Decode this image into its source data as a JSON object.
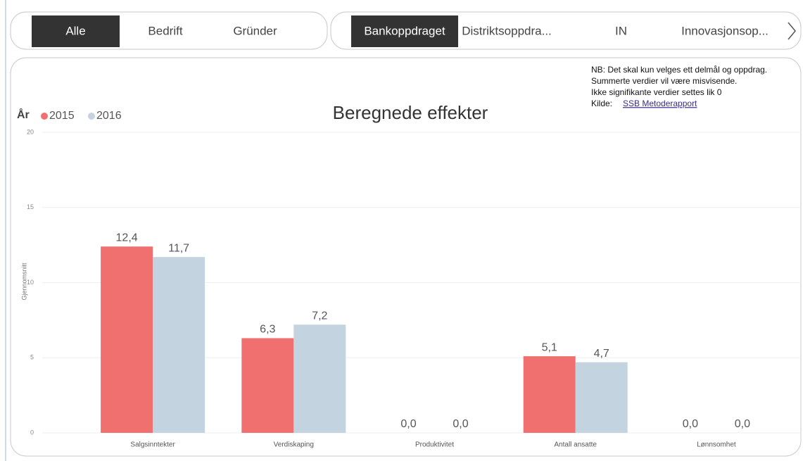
{
  "slicer_left": {
    "items": [
      "Alle",
      "Bedrift",
      "Gründer"
    ],
    "selected": 0
  },
  "slicer_right": {
    "items": [
      "Bankoppdraget",
      "Distriktsoppdra...",
      "IN",
      "Innovasjonsop..."
    ],
    "selected": 0
  },
  "note": {
    "lines": [
      "NB: Det skal kun velges ett delmål og oppdrag.",
      "Summerte verdier vil være misvisende.",
      "Ikke signifikante verdier settes lik 0"
    ],
    "source_label": "Kilde:",
    "source_link": "SSB Metoderapport"
  },
  "chart_data": {
    "type": "bar",
    "title": "Beregnede effekter",
    "y_label": "Gjennomsnitt",
    "legend_title": "År",
    "categories": [
      "Salgsinntekter",
      "Verdiskaping",
      "Produktivitet",
      "Antall ansatte",
      "Lønnsomhet"
    ],
    "series": [
      {
        "name": "2015",
        "color": "#f07070",
        "values": [
          12.4,
          6.3,
          0,
          5.1,
          0
        ],
        "value_labels": [
          "12,4",
          "6,3",
          "0,0",
          "5,1",
          "0,0"
        ]
      },
      {
        "name": "2016",
        "color": "#c3d3df",
        "values": [
          11.7,
          7.2,
          0,
          4.7,
          0
        ],
        "value_labels": [
          "11,7",
          "7,2",
          "0,0",
          "4,7",
          "0,0"
        ]
      }
    ],
    "ylim": [
      0,
      20
    ],
    "yticks": [
      0,
      5,
      10,
      15,
      20
    ],
    "grid": true
  }
}
